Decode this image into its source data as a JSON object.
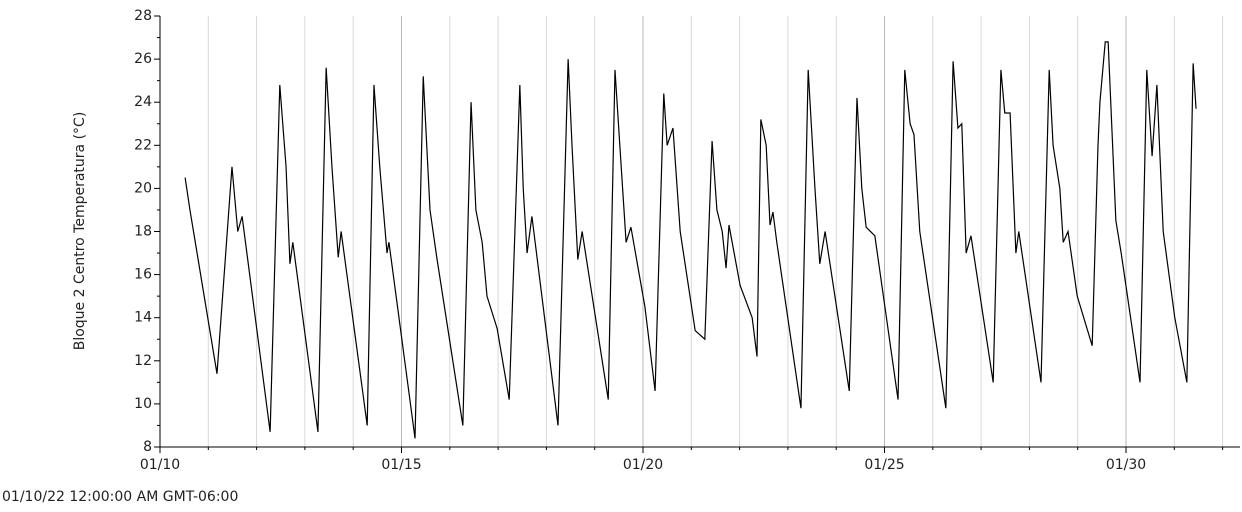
{
  "chart_data": {
    "type": "line",
    "ylabel": "Bloque 2 Centro Temperatura (°C)",
    "xlabel": "01/10/22 12:00:00 AM GMT-06:00",
    "xlim": [
      0,
      22.36
    ],
    "xticks": [
      {
        "value": 0,
        "label": "01/10"
      },
      {
        "value": 5,
        "label": "01/15"
      },
      {
        "value": 10,
        "label": "01/20"
      },
      {
        "value": 15,
        "label": "01/25"
      },
      {
        "value": 20,
        "label": "01/30"
      }
    ],
    "x_minor_ticks": [
      1,
      2,
      3,
      4,
      6,
      7,
      8,
      9,
      11,
      12,
      13,
      14,
      16,
      17,
      18,
      19,
      21,
      22
    ],
    "ylim": [
      8,
      28
    ],
    "yticks": [
      8,
      10,
      12,
      14,
      16,
      18,
      20,
      22,
      24,
      26,
      28
    ],
    "y_minor_ticks": [
      9,
      11,
      13,
      15,
      17,
      19,
      21,
      23,
      25,
      27
    ],
    "grid": true,
    "series": [
      {
        "color": "#000000",
        "x": [
          0.52,
          0.62,
          1.18,
          1.49,
          1.61,
          1.7,
          2.28,
          2.48,
          2.61,
          2.69,
          2.75,
          3.27,
          3.44,
          3.56,
          3.69,
          3.75,
          4.29,
          4.43,
          4.55,
          4.7,
          4.74,
          5.28,
          5.45,
          5.59,
          5.73,
          6.27,
          6.44,
          6.54,
          6.67,
          6.77,
          6.98,
          7.23,
          7.45,
          7.52,
          7.6,
          7.7,
          8.24,
          8.45,
          8.53,
          8.65,
          8.74,
          9.28,
          9.42,
          9.52,
          9.65,
          9.75,
          10.04,
          10.25,
          10.43,
          10.5,
          10.62,
          10.77,
          11.08,
          11.28,
          11.43,
          11.53,
          11.64,
          11.72,
          11.78,
          12.01,
          12.26,
          12.36,
          12.44,
          12.55,
          12.63,
          12.69,
          12.77,
          13.27,
          13.42,
          13.56,
          13.66,
          13.77,
          14.27,
          14.43,
          14.53,
          14.62,
          14.8,
          15.28,
          15.42,
          15.53,
          15.61,
          15.73,
          16.27,
          16.42,
          16.52,
          16.6,
          16.69,
          16.79,
          17.25,
          17.41,
          17.49,
          17.6,
          17.72,
          17.78,
          18.24,
          18.41,
          18.49,
          18.63,
          18.7,
          18.8,
          18.99,
          19.3,
          19.42,
          19.46,
          19.57,
          19.63,
          19.79,
          19.9,
          20.29,
          20.43,
          20.54,
          20.64,
          20.77,
          21.01,
          21.26,
          21.39,
          21.45
        ],
        "values": [
          20.5,
          19,
          11.4,
          21,
          18,
          18.7,
          8.7,
          24.8,
          21,
          16.5,
          17.5,
          8.7,
          25.6,
          21,
          16.8,
          18,
          9,
          24.8,
          21,
          17,
          17.5,
          8.4,
          25.2,
          19,
          16.8,
          9,
          24,
          19,
          17.5,
          15,
          13.5,
          10.2,
          24.8,
          20,
          17,
          18.7,
          9,
          26,
          22,
          16.7,
          18,
          10.2,
          25.5,
          22,
          17.5,
          18.2,
          14.5,
          10.6,
          24.4,
          22,
          22.8,
          18,
          13.4,
          13,
          22.2,
          19,
          18,
          16.3,
          18.3,
          15.5,
          14,
          12.2,
          23.2,
          22,
          18.3,
          18.9,
          17.5,
          9.8,
          25.5,
          20,
          16.5,
          18,
          10.6,
          24.2,
          20,
          18.2,
          17.8,
          10.2,
          25.5,
          23,
          22.5,
          18,
          9.8,
          25.9,
          22.8,
          23,
          17,
          17.8,
          11,
          25.5,
          23.5,
          23.5,
          17,
          18,
          11,
          25.5,
          22,
          20,
          17.5,
          18,
          15,
          12.7,
          22,
          24,
          26.8,
          26.8,
          18.5,
          17,
          11,
          25.5,
          21.5,
          24.8,
          18,
          14,
          11,
          25.8,
          23.7
        ]
      }
    ]
  }
}
